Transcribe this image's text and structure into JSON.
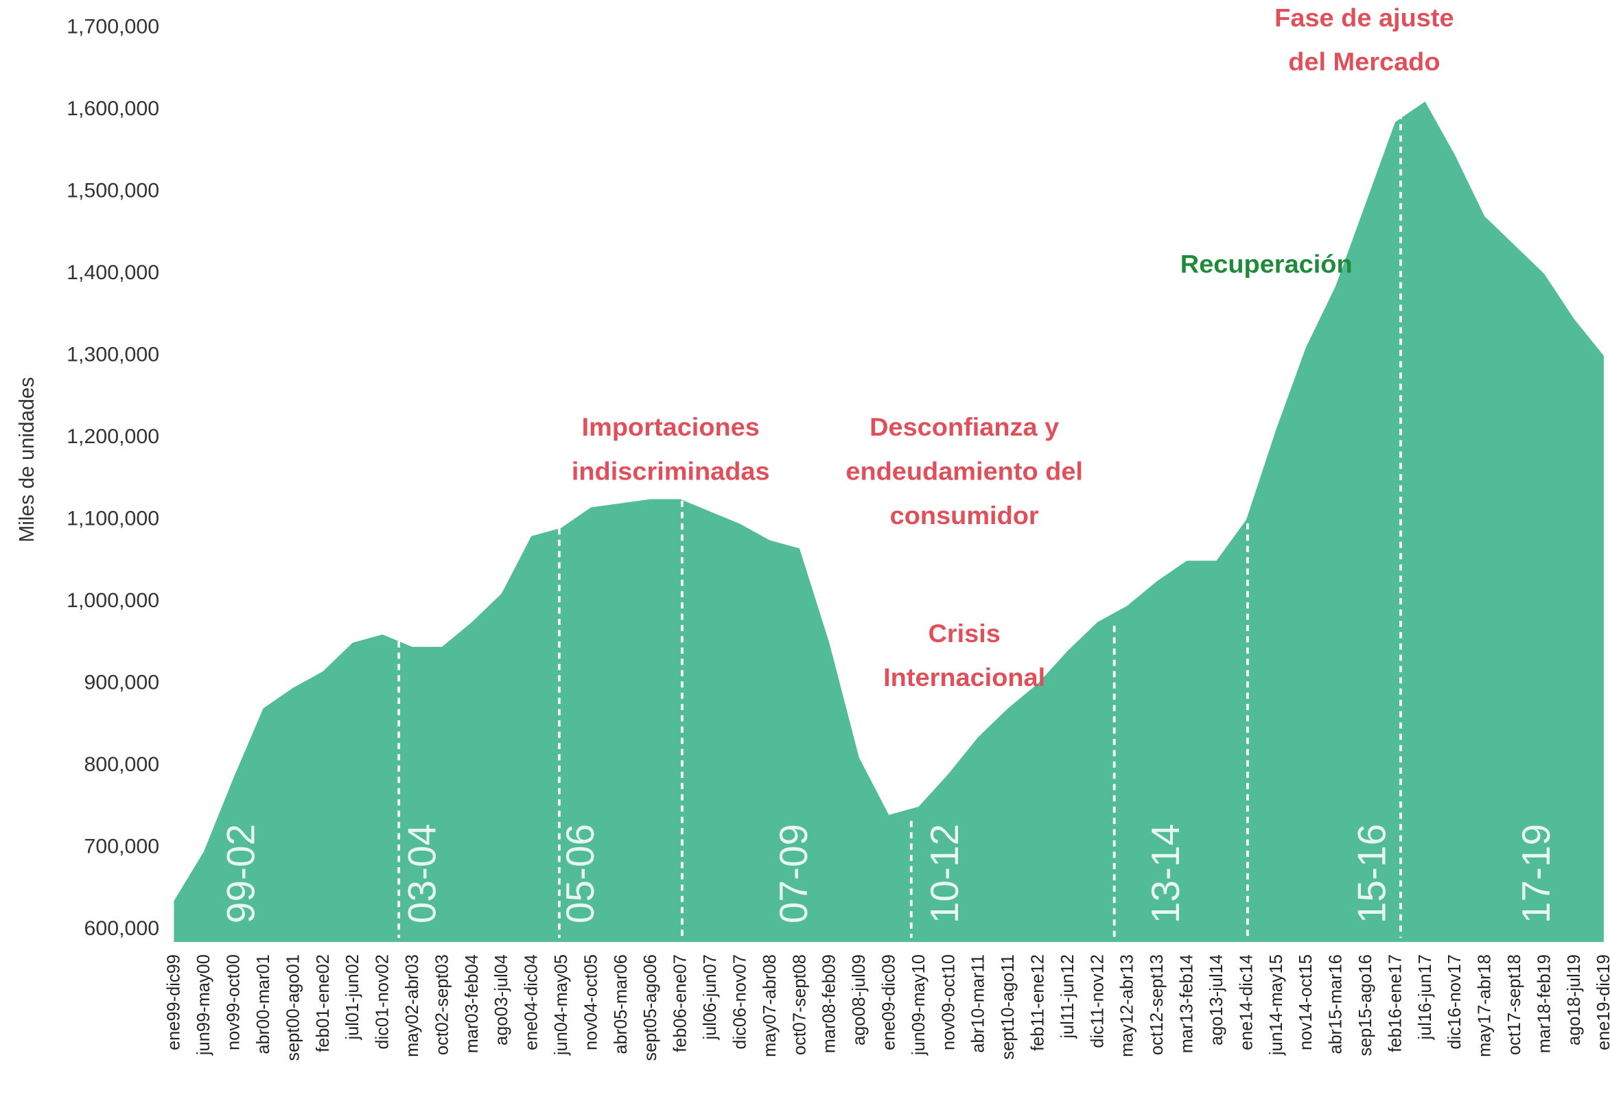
{
  "chart_data": {
    "type": "area",
    "y_label": "Miles de unidades",
    "color": "#52bb98",
    "categories": [
      "ene99-dic99",
      "jun99-may00",
      "nov99-oct00",
      "abr00-mar01",
      "sept00-ago01",
      "feb01-ene02",
      "jul01-jun02",
      "dic01-nov02",
      "may02-abr03",
      "oct02-sept03",
      "mar03-feb04",
      "ago03-jul04",
      "ene04-dic04",
      "jun04-may05",
      "nov04-oct05",
      "abr05-mar06",
      "sept05-ago06",
      "feb06-ene07",
      "jul06-jun07",
      "dic06-nov07",
      "may07-abr08",
      "oct07-sept08",
      "mar08-feb09",
      "ago08-jul09",
      "ene09-dic09",
      "jun09-may10",
      "nov09-oct10",
      "abr10-mar11",
      "sept10-ago11",
      "feb11-ene12",
      "jul11-jun12",
      "dic11-nov12",
      "may12-abr13",
      "oct12-sept13",
      "mar13-feb14",
      "ago13-jul14",
      "ene14-dic14",
      "jun14-may15",
      "nov14-oct15",
      "abr15-mar16",
      "sep15-ago16",
      "feb16-ene17",
      "jul16-jun17",
      "dic16-nov17",
      "may17-abr18",
      "oct17-sept18",
      "mar18-feb19",
      "ago18-jul19",
      "ene19-dic19"
    ],
    "values": [
      635000,
      695000,
      785000,
      870000,
      895000,
      915000,
      950000,
      960000,
      945000,
      945000,
      975000,
      1010000,
      1080000,
      1090000,
      1115000,
      1120000,
      1125000,
      1125000,
      1110000,
      1095000,
      1075000,
      1065000,
      950000,
      810000,
      740000,
      750000,
      790000,
      835000,
      870000,
      900000,
      940000,
      975000,
      995000,
      1025000,
      1050000,
      1050000,
      1100000,
      1210000,
      1310000,
      1385000,
      1485000,
      1585000,
      1610000,
      1545000,
      1470000,
      1435000,
      1400000,
      1345000,
      1300000
    ],
    "ylim": [
      585000,
      1700000
    ],
    "yticks": [
      {
        "value": 600000,
        "label": "600,000"
      },
      {
        "value": 700000,
        "label": "700,000"
      },
      {
        "value": 800000,
        "label": "800,000"
      },
      {
        "value": 900000,
        "label": "900,000"
      },
      {
        "value": 1000000,
        "label": "1,000,000"
      },
      {
        "value": 1100000,
        "label": "1,100,000"
      },
      {
        "value": 1200000,
        "label": "1,200,000"
      },
      {
        "value": 1300000,
        "label": "1,300,000"
      },
      {
        "value": 1400000,
        "label": "1,400,000"
      },
      {
        "value": 1500000,
        "label": "1,500,000"
      },
      {
        "value": 1600000,
        "label": "1,600,000"
      },
      {
        "value": 1700000,
        "label": "1,700,000"
      }
    ],
    "periods": [
      "99-02",
      "03-04",
      "05-06",
      "07-09",
      "10-12",
      "13-14",
      "15-16",
      "17-19"
    ],
    "annotations": [
      {
        "lines": [
          "Importaciones",
          "indiscriminadas"
        ],
        "color": "#e0505a"
      },
      {
        "lines": [
          "Desconfianza y",
          "endeudamiento del",
          "consumidor"
        ],
        "color": "#e0505a"
      },
      {
        "lines": [
          "Crisis",
          "Internacional"
        ],
        "color": "#e0505a"
      },
      {
        "lines": [
          "Recuperación"
        ],
        "color": "#1e8a3a"
      },
      {
        "lines": [
          "Fase de ajuste",
          "del Mercado"
        ],
        "color": "#e0505a"
      }
    ]
  }
}
